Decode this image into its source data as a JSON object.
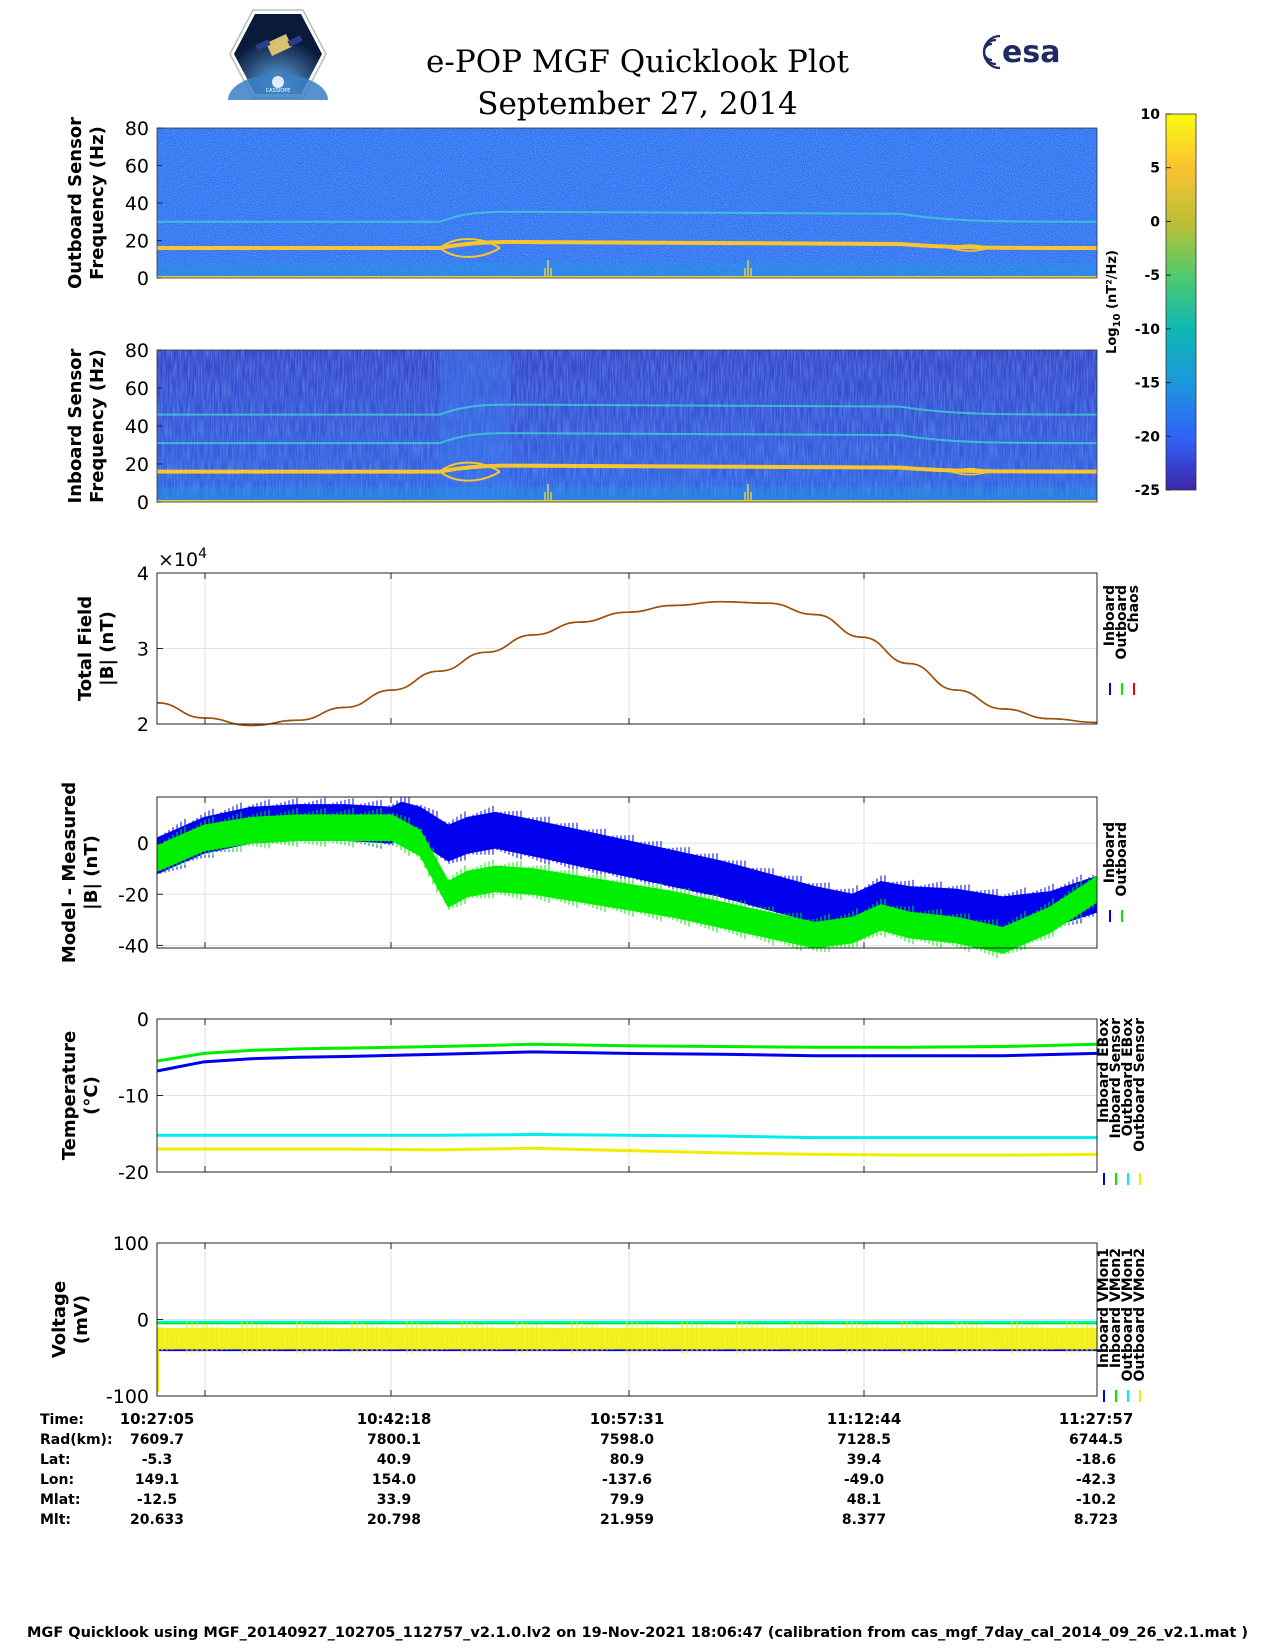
{
  "header": {
    "title": "e-POP MGF Quicklook Plot",
    "date": "September 27, 2014",
    "esa_logo_text": "esa",
    "cassiope_logo_text": "CASSIOPE"
  },
  "colors": {
    "inboard": "#0000ee",
    "outboard": "#00ee00",
    "chaos": "#ee0000",
    "cyan": "#00eeee",
    "yellow": "#eeee00",
    "field_line": "#8a5a00",
    "esa_blue": "#1f2a63"
  },
  "chart_data": [
    {
      "id": "outboard-spectrogram",
      "type": "heatmap",
      "ylabel": [
        "Outboard Sensor",
        "Frequency (Hz)"
      ],
      "ylim": [
        0,
        80
      ],
      "yticks": [
        0,
        20,
        40,
        60,
        80
      ],
      "lines_hz": [
        16,
        30
      ]
    },
    {
      "id": "inboard-spectrogram",
      "type": "heatmap",
      "ylabel": [
        "Inboard Sensor",
        "Frequency (Hz)"
      ],
      "ylim": [
        0,
        80
      ],
      "yticks": [
        0,
        20,
        40,
        60,
        80
      ],
      "lines_hz": [
        16,
        31,
        46
      ]
    },
    {
      "id": "colorbar",
      "type": "heatmap",
      "label_main": "Log",
      "label_sub": "10",
      "label_rest": "(nT²/Hz)",
      "ylim": [
        -25,
        10
      ],
      "ticks": [
        10,
        5,
        0,
        -5,
        -10,
        -15,
        -20,
        -25
      ]
    },
    {
      "id": "total-field",
      "type": "line",
      "ylabel": [
        "Total Field",
        "|B| (nT)"
      ],
      "ylim": [
        2,
        4
      ],
      "yticks": [
        2,
        3,
        4
      ],
      "exponent_label": "×10",
      "exponent_value": "4",
      "legend": [
        "Inboard",
        "Outboard",
        "Chaos"
      ],
      "x": [
        0,
        5,
        10,
        15,
        20,
        25,
        30,
        35,
        40,
        45,
        50,
        55,
        60,
        65,
        70,
        75,
        80,
        85,
        90,
        95,
        100
      ],
      "y": [
        2.28,
        2.08,
        1.98,
        2.05,
        2.22,
        2.45,
        2.7,
        2.95,
        3.18,
        3.35,
        3.48,
        3.57,
        3.62,
        3.6,
        3.45,
        3.15,
        2.8,
        2.45,
        2.2,
        2.07,
        2.02
      ]
    },
    {
      "id": "model-measured",
      "type": "line",
      "ylabel": [
        "Model - Measured",
        "|B| (nT)"
      ],
      "ylim": [
        -41,
        18
      ],
      "yticks": [
        -40,
        -20,
        0
      ],
      "legend": [
        "Inboard",
        "Outboard"
      ],
      "x": [
        0,
        5,
        10,
        15,
        20,
        25,
        26,
        28,
        31,
        33,
        36,
        40,
        45,
        50,
        55,
        60,
        65,
        70,
        74,
        77,
        80,
        85,
        90,
        95,
        100
      ],
      "series": [
        {
          "name": "Inboard",
          "center": [
            -5,
            3,
            7,
            8,
            8,
            7,
            9,
            7,
            0,
            3,
            5,
            2,
            -2,
            -6,
            -10,
            -14,
            -19,
            -24,
            -27,
            -22,
            -24,
            -25,
            -28,
            -26,
            -20
          ],
          "half_range": 7
        },
        {
          "name": "Outboard",
          "center": [
            -6,
            2,
            5,
            6,
            6,
            6,
            4,
            0,
            -20,
            -16,
            -14,
            -15,
            -18,
            -21,
            -24,
            -28,
            -32,
            -36,
            -34,
            -29,
            -32,
            -34,
            -38,
            -30,
            -18
          ],
          "half_range": 5
        }
      ]
    },
    {
      "id": "temperature",
      "type": "line",
      "ylabel": [
        "Temperature",
        "(°C)"
      ],
      "ylim": [
        -20,
        0
      ],
      "yticks": [
        -20,
        -10,
        0
      ],
      "legend": [
        "Inboard EBox",
        "Inboard Sensor",
        "Outboard EBox",
        "Outboard Sensor"
      ],
      "x": [
        0,
        5,
        10,
        15,
        20,
        30,
        40,
        50,
        60,
        70,
        80,
        90,
        100
      ],
      "series": [
        {
          "name": "Inboard EBox",
          "values": [
            -6.8,
            -5.6,
            -5.2,
            -5.0,
            -4.9,
            -4.6,
            -4.3,
            -4.5,
            -4.6,
            -4.8,
            -4.8,
            -4.8,
            -4.5
          ]
        },
        {
          "name": "Inboard Sensor",
          "values": [
            -5.5,
            -4.5,
            -4.1,
            -3.9,
            -3.8,
            -3.6,
            -3.3,
            -3.5,
            -3.6,
            -3.7,
            -3.7,
            -3.6,
            -3.3
          ]
        },
        {
          "name": "Outboard EBox",
          "values": [
            -15.2,
            -15.2,
            -15.2,
            -15.2,
            -15.2,
            -15.2,
            -15.1,
            -15.2,
            -15.3,
            -15.5,
            -15.5,
            -15.5,
            -15.5
          ]
        },
        {
          "name": "Outboard Sensor",
          "values": [
            -17.0,
            -17.0,
            -17.0,
            -17.0,
            -17.0,
            -17.1,
            -16.9,
            -17.2,
            -17.5,
            -17.7,
            -17.8,
            -17.8,
            -17.7
          ]
        }
      ]
    },
    {
      "id": "voltage",
      "type": "line",
      "ylabel": [
        "Voltage",
        "(mV)"
      ],
      "ylim": [
        -100,
        100
      ],
      "yticks": [
        -100,
        0,
        100
      ],
      "legend": [
        "Inboard VMon1",
        "Inboard VMon2",
        "Outboard VMon1",
        "Outboard VMon2"
      ],
      "series": [
        {
          "name": "Inboard VMon1",
          "value": -40
        },
        {
          "name": "Inboard VMon2",
          "value": -5
        },
        {
          "name": "Outboard VMon1",
          "value": -3
        },
        {
          "name": "Outboard VMon2",
          "value": -25,
          "spread": 14
        }
      ]
    }
  ],
  "time_axis": {
    "row_labels": [
      "Time:",
      "Rad(km):",
      "Lat:",
      "Lon:",
      "Mlat:",
      "Mlt:"
    ],
    "columns": [
      [
        "10:27:05",
        "7609.7",
        "-5.3",
        "149.1",
        "-12.5",
        "20.633"
      ],
      [
        "10:42:18",
        "7800.1",
        "40.9",
        "154.0",
        "33.9",
        "20.798"
      ],
      [
        "10:57:31",
        "7598.0",
        "80.9",
        "-137.6",
        "79.9",
        "21.959"
      ],
      [
        "11:12:44",
        "7128.5",
        "39.4",
        "-49.0",
        "48.1",
        "8.377"
      ],
      [
        "11:27:57",
        "6744.5",
        "-18.6",
        "-42.3",
        "-10.2",
        "8.723"
      ]
    ]
  },
  "footer": "MGF Quicklook using MGF_20140927_102705_112757_v2.1.0.lv2 on 19-Nov-2021 18:06:47 (calibration from cas_mgf_7day_cal_2014_09_26_v2.1.mat )"
}
